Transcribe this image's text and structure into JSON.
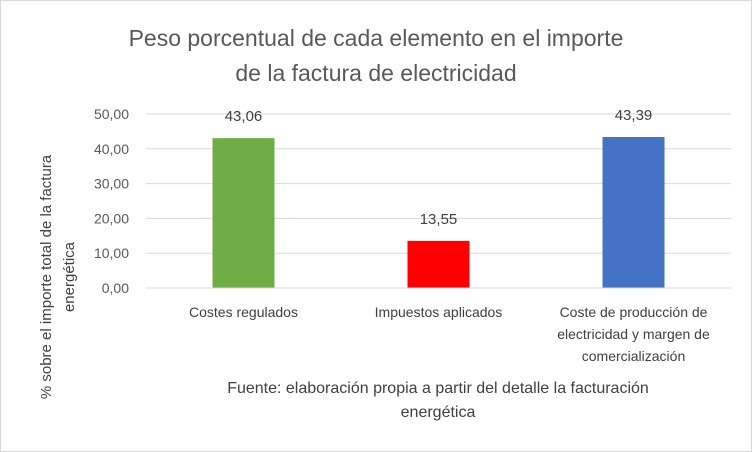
{
  "chart_data": {
    "type": "bar",
    "title_lines": [
      "Peso porcentual de cada elemento en el importe",
      "de la factura de electricidad"
    ],
    "categories": [
      [
        "Costes regulados"
      ],
      [
        "Impuestos aplicados"
      ],
      [
        "Coste de producción de",
        "electricidad y margen de",
        "comercialización"
      ]
    ],
    "values": [
      43.06,
      13.55,
      43.39
    ],
    "value_labels": [
      "43,06",
      "13,55",
      "43,39"
    ],
    "bar_colors": [
      "#70ad47",
      "#ff0000",
      "#4472c4"
    ],
    "ylabel_lines": [
      "% sobre el importe total de la factura",
      "energética"
    ],
    "ylim": [
      0,
      50
    ],
    "y_ticks": [
      0,
      10,
      20,
      30,
      40,
      50
    ],
    "y_tick_labels": [
      "0,00",
      "10,00",
      "20,00",
      "30,00",
      "40,00",
      "50,00"
    ],
    "grid": true,
    "grid_color": "#d9d9d9",
    "legend": "none",
    "source_lines": [
      "Fuente: elaboración propia a partir del detalle la facturación",
      "energética"
    ]
  }
}
